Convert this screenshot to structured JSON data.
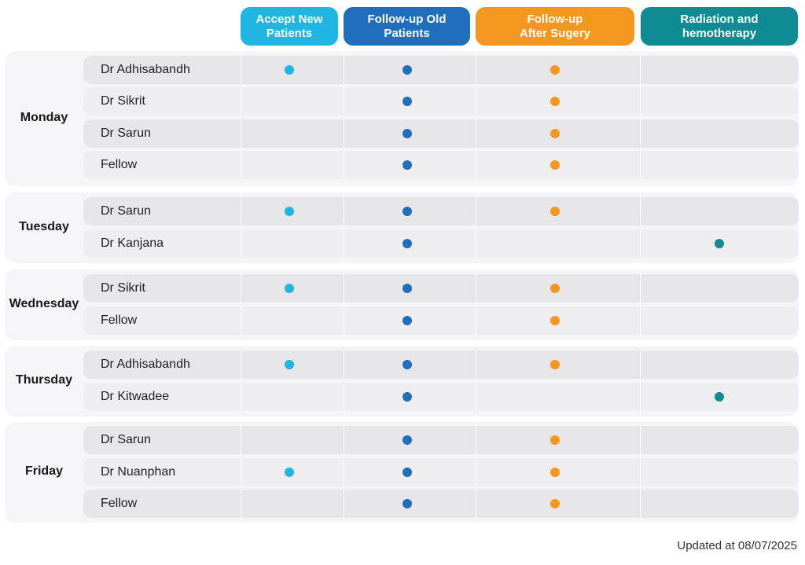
{
  "headers": {
    "accept_new": [
      "Accept New",
      "Patients"
    ],
    "followup_old": [
      "Follow-up Old",
      "Patients"
    ],
    "followup_surgery": [
      "Follow-up",
      "After Sugery"
    ],
    "radiation": [
      "Radiation and",
      "hemotherapy"
    ]
  },
  "colors": {
    "accept_new": "#1fb6e2",
    "followup_old": "#1f6fbd",
    "followup_surgery": "#f5961e",
    "radiation": "#0e8b93"
  },
  "schedule": [
    {
      "day": "Monday",
      "rows": [
        {
          "name": "Dr Adhisabandh",
          "accept_new": true,
          "followup_old": true,
          "followup_surgery": true,
          "radiation": false
        },
        {
          "name": "Dr Sikrit",
          "accept_new": false,
          "followup_old": true,
          "followup_surgery": true,
          "radiation": false
        },
        {
          "name": "Dr Sarun",
          "accept_new": false,
          "followup_old": true,
          "followup_surgery": true,
          "radiation": false
        },
        {
          "name": "Fellow",
          "accept_new": false,
          "followup_old": true,
          "followup_surgery": true,
          "radiation": false
        }
      ]
    },
    {
      "day": "Tuesday",
      "rows": [
        {
          "name": "Dr Sarun",
          "accept_new": true,
          "followup_old": true,
          "followup_surgery": true,
          "radiation": false
        },
        {
          "name": "Dr Kanjana",
          "accept_new": false,
          "followup_old": true,
          "followup_surgery": false,
          "radiation": true
        }
      ]
    },
    {
      "day": "Wednesday",
      "rows": [
        {
          "name": "Dr Sikrit",
          "accept_new": true,
          "followup_old": true,
          "followup_surgery": true,
          "radiation": false
        },
        {
          "name": "Fellow",
          "accept_new": false,
          "followup_old": true,
          "followup_surgery": true,
          "radiation": false
        }
      ]
    },
    {
      "day": "Thursday",
      "rows": [
        {
          "name": "Dr Adhisabandh",
          "accept_new": true,
          "followup_old": true,
          "followup_surgery": true,
          "radiation": false
        },
        {
          "name": "Dr Kitwadee",
          "accept_new": false,
          "followup_old": true,
          "followup_surgery": false,
          "radiation": true
        }
      ]
    },
    {
      "day": "Friday",
      "rows": [
        {
          "name": "Dr Sarun",
          "accept_new": false,
          "followup_old": true,
          "followup_surgery": true,
          "radiation": false
        },
        {
          "name": "Dr Nuanphan",
          "accept_new": true,
          "followup_old": true,
          "followup_surgery": true,
          "radiation": false
        },
        {
          "name": "Fellow",
          "accept_new": false,
          "followup_old": true,
          "followup_surgery": true,
          "radiation": false
        }
      ]
    }
  ],
  "footer": {
    "updated": "Updated at 08/07/2025"
  }
}
